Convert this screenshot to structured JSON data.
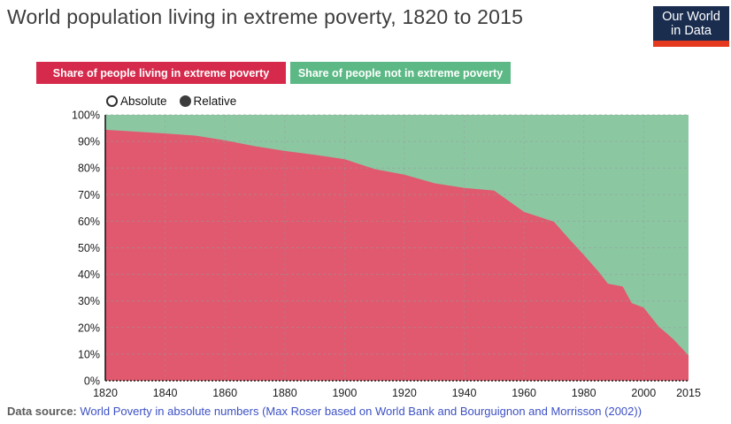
{
  "header": {
    "title": "World population living in extreme poverty, 1820 to 2015",
    "logo": {
      "line1": "Our World",
      "line2": "in Data",
      "bg_color": "#1a2d4f",
      "bar_color": "#e5391f"
    }
  },
  "legend": {
    "poverty_label": "Share of people living in extreme poverty",
    "poverty_color": "#d62a4c",
    "not_poverty_label": "Share of people not in extreme poverty",
    "not_poverty_color": "#5cb985"
  },
  "controls": {
    "absolute_label": "Absolute",
    "relative_label": "Relative",
    "selected": "Relative"
  },
  "chart_data": {
    "type": "area",
    "title": "World population living in extreme poverty, 1820 to 2015",
    "stacked": true,
    "x": [
      1820,
      1830,
      1840,
      1850,
      1860,
      1870,
      1880,
      1890,
      1900,
      1910,
      1920,
      1930,
      1940,
      1950,
      1960,
      1970,
      1975,
      1980,
      1985,
      1987,
      1988,
      1993,
      1996,
      2000,
      2005,
      2008,
      2010,
      2015
    ],
    "series": [
      {
        "name": "Share of people living in extreme poverty",
        "area_color": "#e0596e",
        "values": [
          94.4,
          93.7,
          93,
          92.2,
          90.4,
          88.2,
          86.4,
          85,
          83.3,
          79.6,
          77.5,
          74.3,
          72.5,
          71.5,
          63.5,
          59.8,
          53.4,
          47.3,
          40.9,
          38,
          36.5,
          35.4,
          29.2,
          27.5,
          20.4,
          17.5,
          15.5,
          9.5
        ]
      },
      {
        "name": "Share of people not in extreme poverty",
        "area_color": "#8bc8a2",
        "values": [
          5.6,
          6.3,
          7,
          7.8,
          9.6,
          11.8,
          13.6,
          15,
          16.7,
          20.4,
          22.5,
          25.7,
          27.5,
          28.5,
          36.5,
          40.2,
          46.6,
          52.7,
          59.1,
          62,
          63.5,
          64.6,
          70.8,
          72.5,
          79.6,
          82.5,
          84.5,
          90.5
        ]
      }
    ],
    "xlabel": "",
    "ylabel": "",
    "xlim": [
      1820,
      2015
    ],
    "ylim": [
      0,
      100
    ],
    "x_ticks": [
      1820,
      1840,
      1860,
      1880,
      1900,
      1920,
      1940,
      1960,
      1980,
      2000,
      2015
    ],
    "y_ticks": [
      "0%",
      "10%",
      "20%",
      "30%",
      "40%",
      "50%",
      "60%",
      "70%",
      "80%",
      "90%",
      "100%"
    ],
    "x_gridlines": [
      1840,
      1860,
      1880,
      1900,
      1920,
      1940,
      1960,
      1980,
      2000
    ],
    "grid": true,
    "gridline_color": "#999999",
    "legend_position": "top"
  },
  "footer": {
    "label": "Data source:",
    "link_text": "World Poverty in absolute numbers (Max Roser based on World Bank and Bourguignon and Morrisson (2002))",
    "link_color": "#3d51c5"
  }
}
